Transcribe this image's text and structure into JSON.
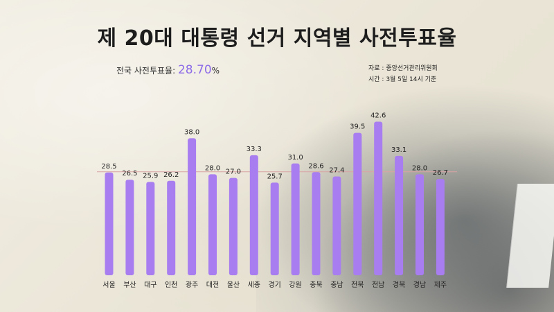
{
  "title": "제 20대 대통령 선거 지역별 사전투표율",
  "national": {
    "label": "전국 사전투표율:",
    "value": "28.70",
    "unit": "%"
  },
  "source": {
    "line1": "자료 : 중앙선거관리위원회",
    "line2": "시간 : 3월 5일 14시 기준"
  },
  "colors": {
    "bar": "#a77df0",
    "bar_dark": "#9165e6",
    "accent": "#8e6ce8",
    "reference_line": "#d9a3a3"
  },
  "chart_data": {
    "type": "bar",
    "title": "제 20대 대통령 선거 지역별 사전투표율",
    "categories": [
      "서울",
      "부산",
      "대구",
      "인천",
      "광주",
      "대전",
      "울산",
      "세종",
      "경기",
      "강원",
      "충북",
      "충남",
      "전북",
      "전남",
      "경북",
      "경남",
      "제주"
    ],
    "values": [
      28.5,
      26.5,
      25.9,
      26.2,
      38.0,
      28.0,
      27.0,
      33.3,
      25.7,
      31.0,
      28.6,
      27.4,
      39.5,
      42.6,
      33.1,
      28.0,
      26.7
    ],
    "value_labels": [
      "28.5",
      "26.5",
      "25.9",
      "26.2",
      "38.0",
      "28.0",
      "27.0",
      "33.3",
      "25.7",
      "31.0",
      "28.6",
      "27.4",
      "39.5",
      "42.6",
      "33.1",
      "28.0",
      "26.7"
    ],
    "reference_value": 28.7,
    "ylim": [
      0,
      45
    ],
    "grid": false,
    "legend": false,
    "xlabel": "",
    "ylabel": ""
  }
}
